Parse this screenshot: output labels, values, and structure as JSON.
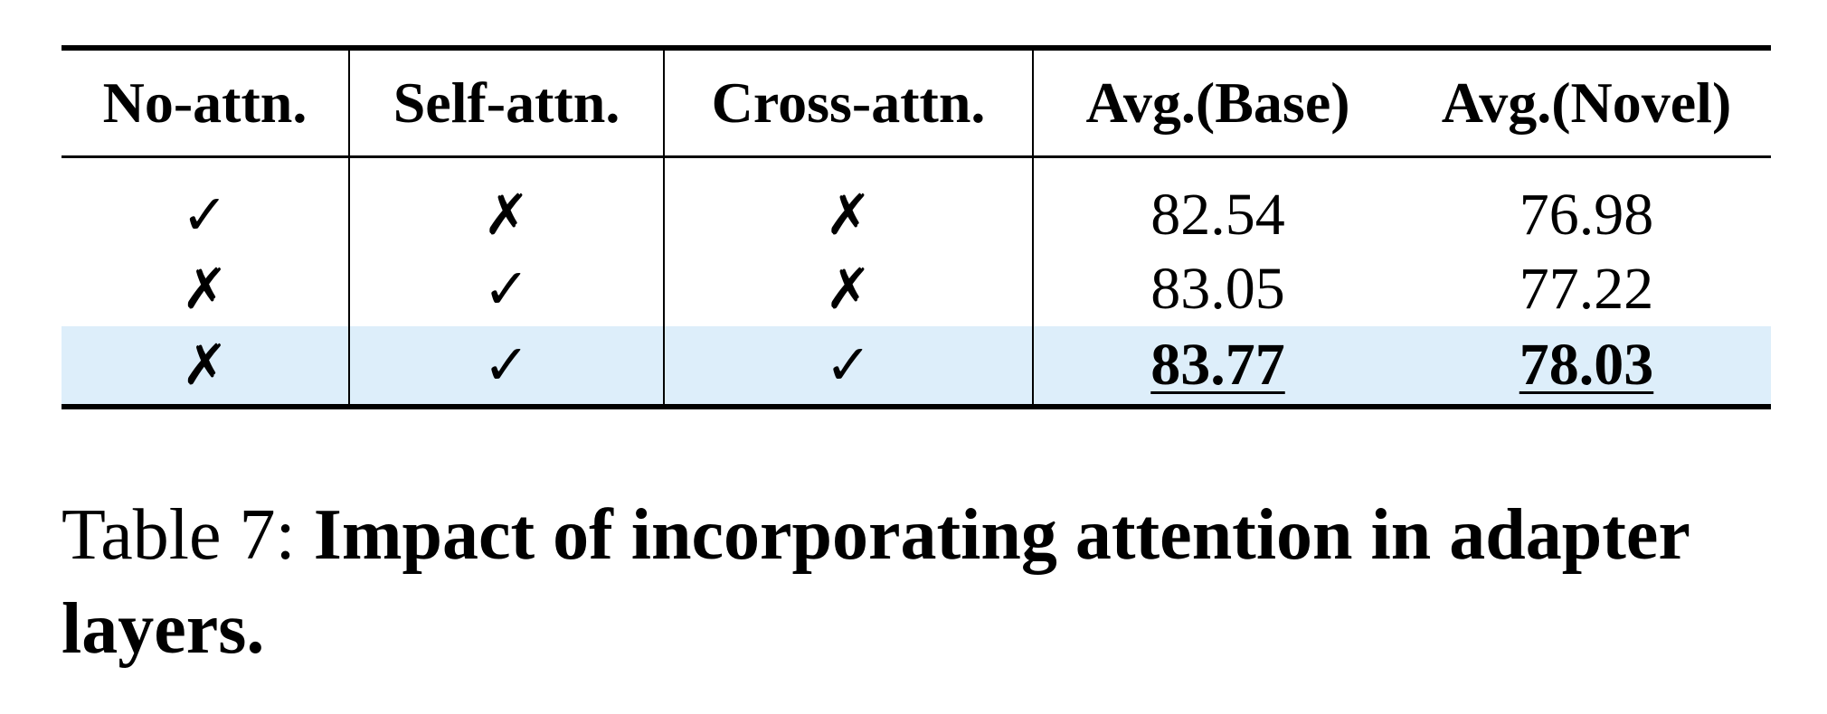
{
  "table": {
    "headers": [
      "No-attn.",
      "Self-attn.",
      "Cross-attn.",
      "Avg.(Base)",
      "Avg.(Novel)"
    ],
    "rows": [
      {
        "no_attn": "✓",
        "self_attn": "✗",
        "cross_attn": "✗",
        "avg_base": "82.54",
        "avg_novel": "76.98"
      },
      {
        "no_attn": "✗",
        "self_attn": "✓",
        "cross_attn": "✗",
        "avg_base": "83.05",
        "avg_novel": "77.22"
      },
      {
        "no_attn": "✗",
        "self_attn": "✓",
        "cross_attn": "✓",
        "avg_base": "83.77",
        "avg_novel": "78.03"
      }
    ],
    "highlight_color": "#ddeefa"
  },
  "caption": {
    "label": "Table 7: ",
    "text": "Impact of incorporating attention in adapter layers."
  }
}
